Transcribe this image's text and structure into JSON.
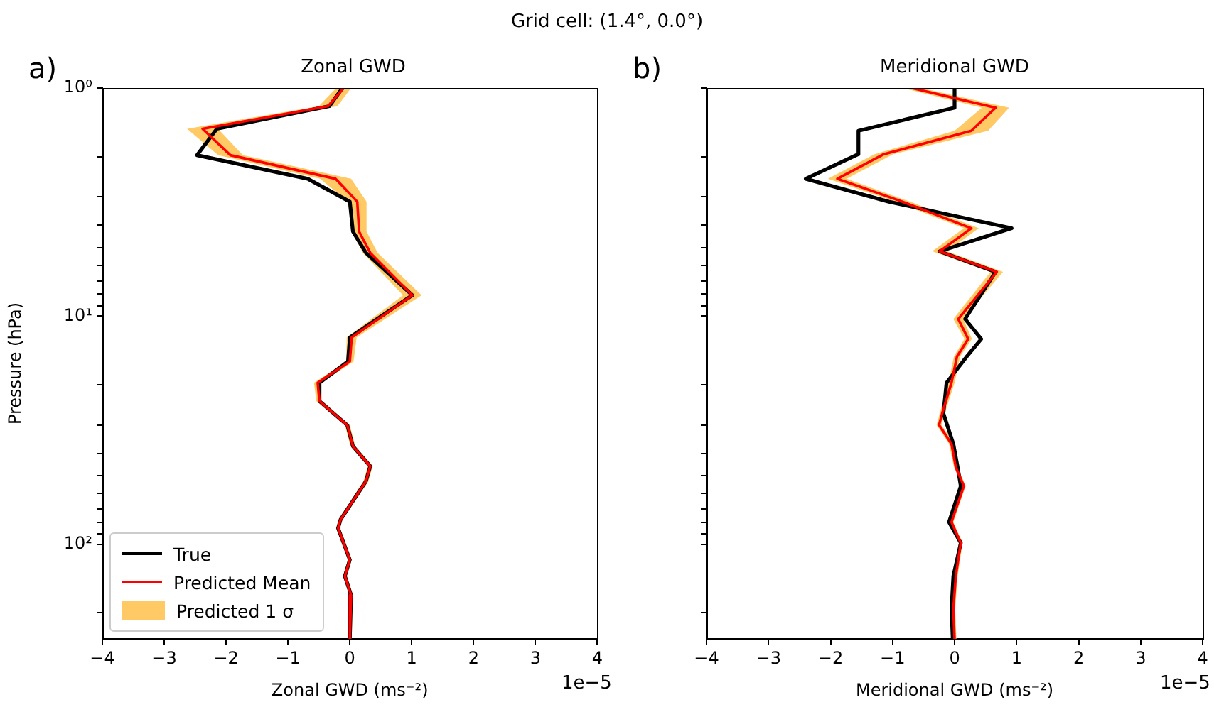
{
  "chart_data": [
    {
      "type": "line",
      "orientation": "horizontal",
      "title": "Zonal GWD",
      "xlabel": "Zonal GWD (ms⁻²)",
      "ylabel": "Pressure (hPa)",
      "annotations": [
        "a)",
        "1e−5",
        "Grid cell: (1.4°, 0.0°)"
      ],
      "xlim": [
        -4,
        4
      ],
      "xticks": [
        -4,
        -3,
        -2,
        -1,
        0,
        1,
        2,
        3,
        4
      ],
      "ylim": [
        260,
        1
      ],
      "log": "y",
      "yticks": [
        {
          "value": 1,
          "label": "10⁰"
        },
        {
          "value": 2,
          "label": null
        },
        {
          "value": 3,
          "label": null
        },
        {
          "value": 4,
          "label": null
        },
        {
          "value": 5,
          "label": null
        },
        {
          "value": 6,
          "label": null
        },
        {
          "value": 7,
          "label": null
        },
        {
          "value": 8,
          "label": null
        },
        {
          "value": 9,
          "label": null
        },
        {
          "value": 10,
          "label": "10¹"
        },
        {
          "value": 20,
          "label": null
        },
        {
          "value": 30,
          "label": null
        },
        {
          "value": 40,
          "label": null
        },
        {
          "value": 50,
          "label": null
        },
        {
          "value": 60,
          "label": null
        },
        {
          "value": 70,
          "label": null
        },
        {
          "value": 80,
          "label": null
        },
        {
          "value": 90,
          "label": null
        },
        {
          "value": 100,
          "label": "10²"
        },
        {
          "value": 200,
          "label": null
        }
      ],
      "legend": "bottom left",
      "series": [
        {
          "name": "True",
          "color": "#000000",
          "values": [
            -0.12,
            -0.33,
            -2.15,
            -2.47,
            -0.68,
            0.0,
            0.05,
            0.26,
            1.01,
            0.0,
            -0.03,
            -0.49,
            -0.49,
            -0.04,
            0.05,
            0.33,
            0.26,
            -0.15,
            -0.19,
            0.0,
            -0.08,
            0.02,
            0.0
          ],
          "x": [
            1,
            1.2,
            1.51,
            1.97,
            2.5,
            3.15,
            4.26,
            5.28,
            8.1,
            12.4,
            15.8,
            19.6,
            23.6,
            30.1,
            37.2,
            45.5,
            53,
            78,
            85,
            117,
            138,
            167,
            260
          ]
        },
        {
          "name": "Predicted Mean",
          "color": "#ff0000",
          "values": [
            -0.1,
            -0.35,
            -2.38,
            -1.93,
            -0.23,
            0.12,
            0.15,
            0.33,
            1.01,
            0.03,
            0.0,
            -0.52,
            -0.49,
            -0.04,
            0.05,
            0.33,
            0.26,
            -0.15,
            -0.19,
            0.0,
            -0.08,
            0.02,
            0.0
          ],
          "x": [
            1,
            1.2,
            1.51,
            1.97,
            2.5,
            3.15,
            4.26,
            5.28,
            8.1,
            12.4,
            15.8,
            19.6,
            23.6,
            30.1,
            37.2,
            45.5,
            53,
            78,
            85,
            117,
            138,
            167,
            260
          ]
        },
        {
          "name": "Predicted 1 σ",
          "type": "area",
          "color": "#ffc966",
          "values": [
            null,
            null,
            null,
            null,
            null,
            null,
            null,
            null,
            null,
            null,
            null,
            null,
            null,
            null,
            null,
            null,
            null,
            null,
            null,
            null,
            null,
            null,
            null
          ],
          "x": [
            1,
            1.2,
            1.51,
            1.97,
            2.5,
            3.15,
            4.26,
            5.28,
            8.1,
            12.4,
            15.8,
            19.6,
            23.6,
            30.1,
            37.2,
            45.5,
            53,
            78,
            85,
            117,
            138,
            167,
            260
          ],
          "lower": [
            -0.22,
            -0.5,
            -2.63,
            -2.13,
            -0.48,
            -0.03,
            0.03,
            0.21,
            0.86,
            -0.05,
            -0.06,
            -0.58,
            -0.54,
            -0.08,
            0.01,
            0.29,
            0.22,
            -0.18,
            -0.22,
            -0.03,
            -0.11,
            -0.01,
            -0.03
          ],
          "upper": [
            0.02,
            -0.2,
            -2.13,
            -1.73,
            0.02,
            0.27,
            0.27,
            0.45,
            1.16,
            0.11,
            0.06,
            -0.46,
            -0.44,
            0.0,
            0.09,
            0.37,
            0.3,
            -0.12,
            -0.16,
            0.03,
            -0.05,
            0.05,
            0.03
          ]
        }
      ]
    },
    {
      "type": "line",
      "orientation": "horizontal",
      "title": "Meridional GWD",
      "xlabel": "Meridional GWD (ms⁻²)",
      "annotations": [
        "b)",
        "1e−5"
      ],
      "xlim": [
        -4,
        4
      ],
      "xticks": [
        -4,
        -3,
        -2,
        -1,
        0,
        1,
        2,
        3,
        4
      ],
      "ylim": [
        260,
        1
      ],
      "log": "y",
      "tick_labels": "x",
      "yticks": [
        {
          "value": 1,
          "label": null
        },
        {
          "value": 2,
          "label": null
        },
        {
          "value": 3,
          "label": null
        },
        {
          "value": 4,
          "label": null
        },
        {
          "value": 5,
          "label": null
        },
        {
          "value": 6,
          "label": null
        },
        {
          "value": 7,
          "label": null
        },
        {
          "value": 8,
          "label": null
        },
        {
          "value": 9,
          "label": null
        },
        {
          "value": 10,
          "label": null
        },
        {
          "value": 20,
          "label": null
        },
        {
          "value": 30,
          "label": null
        },
        {
          "value": 40,
          "label": null
        },
        {
          "value": 50,
          "label": null
        },
        {
          "value": 60,
          "label": null
        },
        {
          "value": 70,
          "label": null
        },
        {
          "value": 80,
          "label": null
        },
        {
          "value": 90,
          "label": null
        },
        {
          "value": 100,
          "label": null
        },
        {
          "value": 200,
          "label": null
        }
      ],
      "series": [
        {
          "color": "#000000",
          "values": [
            0,
            0,
            -1.55,
            -1.55,
            -2.4,
            -1.06,
            0.92,
            -0.24,
            0.66,
            0.17,
            0.43,
            0.2,
            -0.13,
            -0.18,
            -0.12,
            -0.02,
            0.05,
            0.1,
            -0.09,
            0.1,
            -0.02,
            -0.05,
            -0.03
          ],
          "x": [
            1,
            1.22,
            1.54,
            1.95,
            2.5,
            3.15,
            4.12,
            5.2,
            6.4,
            10.3,
            12.6,
            15,
            19.6,
            26.7,
            30,
            36.3,
            46,
            55.6,
            80,
            98.7,
            138,
            193,
            260
          ]
        },
        {
          "color": "#ff0000",
          "values": [
            -0.69,
            0.66,
            0.27,
            -1.14,
            -1.89,
            -0.84,
            0.27,
            -0.24,
            0.68,
            0.06,
            0.22,
            0.04,
            -0.05,
            -0.2,
            -0.25,
            -0.05,
            0.02,
            0.15,
            -0.05,
            0.1,
            0.02,
            -0.02,
            0.0
          ],
          "x": [
            1,
            1.22,
            1.54,
            1.95,
            2.5,
            3.15,
            4.12,
            5.2,
            6.4,
            10.3,
            12.6,
            15,
            19.6,
            26.7,
            30,
            36.3,
            46,
            55.6,
            80,
            98.7,
            138,
            193,
            260
          ]
        },
        {
          "type": "area",
          "color": "#ffc966",
          "values": [
            null,
            null,
            null,
            null,
            null,
            null,
            null,
            null,
            null,
            null,
            null,
            null,
            null,
            null,
            null,
            null,
            null,
            null,
            null,
            null,
            null,
            null,
            null
          ],
          "x": [
            1,
            1.22,
            1.54,
            1.95,
            2.5,
            3.15,
            4.12,
            5.2,
            6.4,
            10.3,
            12.6,
            15,
            19.6,
            26.7,
            30,
            36.3,
            46,
            55.6,
            80,
            98.7,
            138,
            193,
            260
          ],
          "lower": [
            -0.84,
            0.44,
            0.0,
            -1.29,
            -2.04,
            -0.96,
            0.15,
            -0.36,
            0.58,
            -0.02,
            0.16,
            -0.01,
            -0.1,
            -0.24,
            -0.29,
            -0.09,
            -0.01,
            0.12,
            -0.08,
            0.07,
            -0.01,
            -0.05,
            -0.03
          ],
          "upper": [
            -0.54,
            0.88,
            0.54,
            -0.99,
            -1.74,
            -0.72,
            0.39,
            -0.12,
            0.78,
            0.14,
            0.28,
            0.09,
            0.0,
            -0.16,
            -0.21,
            -0.01,
            0.05,
            0.18,
            -0.02,
            0.13,
            0.05,
            0.01,
            0.03
          ]
        }
      ]
    }
  ]
}
